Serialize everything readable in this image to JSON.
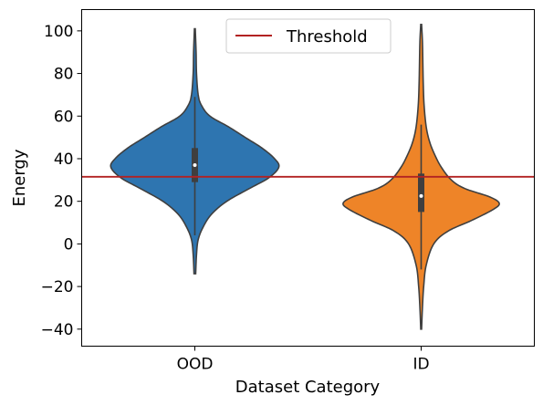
{
  "chart_data": {
    "type": "violin",
    "title": "",
    "xlabel": "Dataset Category",
    "ylabel": "Energy",
    "ylim": [
      -48,
      110
    ],
    "yticks": [
      -40,
      -20,
      0,
      20,
      40,
      60,
      80,
      100
    ],
    "ytick_labels": [
      "−40",
      "−20",
      "0",
      "20",
      "40",
      "60",
      "80",
      "100"
    ],
    "categories": [
      "OOD",
      "ID"
    ],
    "grid": false,
    "legend": {
      "position": "top-center",
      "entries": [
        "Threshold"
      ]
    },
    "threshold": {
      "name": "Threshold",
      "value": 31.5,
      "color": "#b22222"
    },
    "series": [
      {
        "category": "OOD",
        "color": "#2e75b0",
        "min": -14,
        "q1": 29,
        "median": 37,
        "q3": 45,
        "max": 101,
        "whisker_low": 4,
        "whisker_high": 69,
        "density": [
          [
            -14,
            0.01
          ],
          [
            -5,
            0.02
          ],
          [
            2,
            0.04
          ],
          [
            8,
            0.1
          ],
          [
            14,
            0.2
          ],
          [
            20,
            0.38
          ],
          [
            26,
            0.65
          ],
          [
            31,
            0.88
          ],
          [
            36,
            1.0
          ],
          [
            40,
            0.95
          ],
          [
            45,
            0.8
          ],
          [
            50,
            0.6
          ],
          [
            55,
            0.4
          ],
          [
            60,
            0.18
          ],
          [
            65,
            0.08
          ],
          [
            70,
            0.04
          ],
          [
            80,
            0.02
          ],
          [
            90,
            0.015
          ],
          [
            101,
            0.005
          ]
        ]
      },
      {
        "category": "ID",
        "color": "#ee8428",
        "min": -40,
        "q1": 15,
        "median": 22.5,
        "q3": 33,
        "max": 103,
        "whisker_low": -12,
        "whisker_high": 56,
        "density": [
          [
            -40,
            0.005
          ],
          [
            -30,
            0.015
          ],
          [
            -20,
            0.03
          ],
          [
            -10,
            0.06
          ],
          [
            0,
            0.15
          ],
          [
            6,
            0.32
          ],
          [
            11,
            0.6
          ],
          [
            16,
            0.85
          ],
          [
            19,
            0.93
          ],
          [
            22,
            0.82
          ],
          [
            26,
            0.52
          ],
          [
            30,
            0.36
          ],
          [
            36,
            0.24
          ],
          [
            42,
            0.16
          ],
          [
            48,
            0.1
          ],
          [
            55,
            0.06
          ],
          [
            65,
            0.035
          ],
          [
            75,
            0.025
          ],
          [
            85,
            0.02
          ],
          [
            95,
            0.015
          ],
          [
            103,
            0.005
          ]
        ]
      }
    ]
  }
}
